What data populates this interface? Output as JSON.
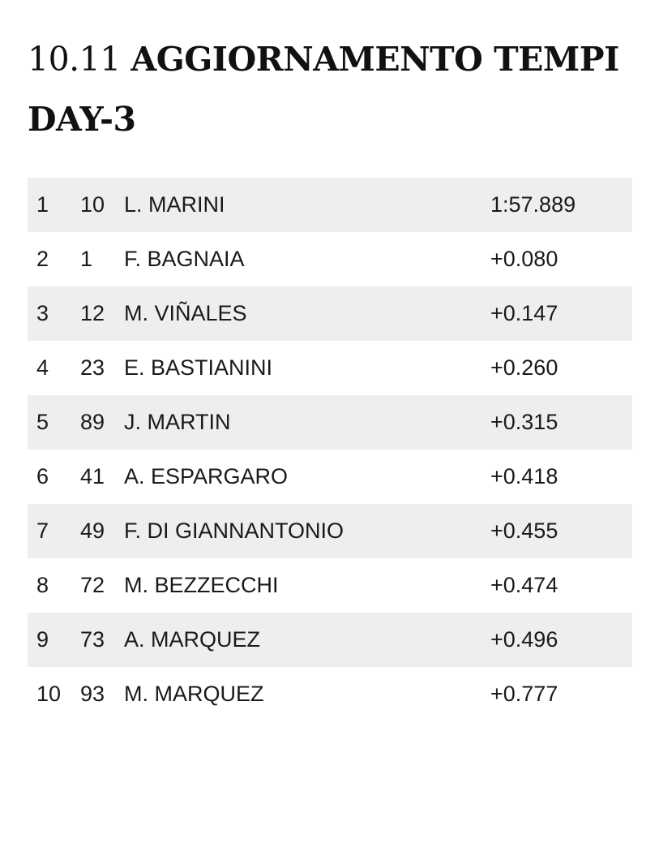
{
  "title": {
    "time": "10.11",
    "headline": "AGGIORNAMENTO TEMPI DAY-3"
  },
  "results": [
    {
      "pos": "1",
      "number": "10",
      "rider": "L. MARINI",
      "time": "1:57.889"
    },
    {
      "pos": "2",
      "number": "1",
      "rider": "F. BAGNAIA",
      "time": "+0.080"
    },
    {
      "pos": "3",
      "number": "12",
      "rider": "M. VIÑALES",
      "time": "+0.147"
    },
    {
      "pos": "4",
      "number": "23",
      "rider": "E. BASTIANINI",
      "time": "+0.260"
    },
    {
      "pos": "5",
      "number": "89",
      "rider": "J. MARTIN",
      "time": "+0.315"
    },
    {
      "pos": "6",
      "number": "41",
      "rider": "A. ESPARGARO",
      "time": "+0.418"
    },
    {
      "pos": "7",
      "number": "49",
      "rider": "F. DI GIANNANTONIO",
      "time": "+0.455"
    },
    {
      "pos": "8",
      "number": "72",
      "rider": "M. BEZZECCHI",
      "time": "+0.474"
    },
    {
      "pos": "9",
      "number": "73",
      "rider": "A. MARQUEZ",
      "time": "+0.496"
    },
    {
      "pos": "10",
      "number": "93",
      "rider": "M. MARQUEZ",
      "time": "+0.777"
    }
  ]
}
